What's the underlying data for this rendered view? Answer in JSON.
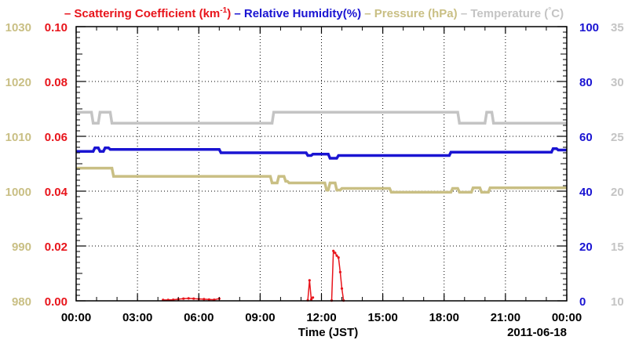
{
  "chart_data": {
    "type": "line",
    "legend": {
      "placement": "top",
      "items": [
        {
          "name": "Scattering Coefficient (km",
          "sup": "-1",
          "suffix": ")",
          "color": "#e8141b"
        },
        {
          "name": "Relative Humidity(%)",
          "color": "#1a14d2"
        },
        {
          "name": "Pressure (hPa)",
          "color": "#c9bf84"
        },
        {
          "name": "Temperature (",
          "degree": "°",
          "suffix": "C)",
          "color": "#c4c4c4"
        }
      ]
    },
    "xlabel": "Time (JST)",
    "date_label": "2011-06-18",
    "x_range": [
      "00:00",
      "24:00"
    ],
    "x_ticks": [
      "00:00",
      "03:00",
      "06:00",
      "09:00",
      "12:00",
      "15:00",
      "18:00",
      "21:00",
      "00:00"
    ],
    "grid": true,
    "axes": {
      "pressure": {
        "ticks": [
          "980",
          "990",
          "1000",
          "1010",
          "1020",
          "1030"
        ],
        "range": [
          980,
          1030
        ],
        "color": "#c9bf84"
      },
      "scattering": {
        "ticks": [
          "0.00",
          "0.02",
          "0.04",
          "0.06",
          "0.08",
          "0.10"
        ],
        "range": [
          0,
          0.1
        ],
        "color": "#e8141b"
      },
      "humidity": {
        "ticks": [
          "0",
          "20",
          "40",
          "60",
          "80",
          "100"
        ],
        "range": [
          0,
          100
        ],
        "color": "#1a14d2"
      },
      "temperature": {
        "ticks": [
          "10",
          "15",
          "20",
          "25",
          "30",
          "35"
        ],
        "range": [
          10,
          35
        ],
        "color": "#c4c4c4"
      }
    },
    "series": [
      {
        "name": "Temperature",
        "axis": "temperature",
        "color": "#c4c4c4",
        "x": [
          "00:00",
          "00:45",
          "00:50",
          "01:05",
          "01:10",
          "01:40",
          "01:45",
          "09:35",
          "09:40",
          "18:40",
          "18:45",
          "20:00",
          "20:05",
          "20:20",
          "20:25",
          "24:00"
        ],
        "y": [
          27.2,
          27.2,
          26.2,
          26.2,
          27.2,
          27.2,
          26.2,
          26.2,
          27.2,
          27.2,
          26.2,
          26.2,
          27.2,
          27.2,
          26.2,
          26.2
        ]
      },
      {
        "name": "Relative Humidity",
        "axis": "humidity",
        "color": "#1a14d2",
        "x": [
          "00:00",
          "00:50",
          "00:55",
          "01:05",
          "01:10",
          "01:20",
          "01:25",
          "01:35",
          "01:40",
          "07:00",
          "07:05",
          "11:15",
          "11:20",
          "11:30",
          "11:35",
          "12:20",
          "12:25",
          "12:45",
          "12:50",
          "18:15",
          "18:20",
          "23:15",
          "23:20",
          "23:30",
          "23:35",
          "24:00"
        ],
        "y": [
          54.5,
          54.5,
          55.8,
          55.8,
          54.5,
          54.5,
          55.8,
          55.8,
          55.2,
          55.2,
          54.0,
          54.0,
          53.0,
          53.0,
          53.5,
          53.5,
          52.0,
          52.0,
          53.0,
          53.0,
          54.2,
          54.2,
          55.5,
          55.5,
          55.0,
          55.0
        ]
      },
      {
        "name": "Pressure",
        "axis": "pressure",
        "color": "#c9bf84",
        "x": [
          "00:00",
          "01:45",
          "01:50",
          "09:30",
          "09:35",
          "09:50",
          "09:55",
          "10:10",
          "10:15",
          "10:20",
          "10:25",
          "12:10",
          "12:15",
          "12:20",
          "12:25",
          "12:40",
          "12:45",
          "12:55",
          "13:00",
          "15:20",
          "15:25",
          "18:20",
          "18:25",
          "18:40",
          "18:45",
          "19:20",
          "19:25",
          "19:45",
          "19:50",
          "20:10",
          "20:15",
          "20:20",
          "20:25",
          "24:00"
        ],
        "y": [
          1004.2,
          1004.2,
          1002.7,
          1002.7,
          1001.5,
          1001.5,
          1002.7,
          1002.7,
          1001.8,
          1001.8,
          1001.5,
          1001.5,
          1000.2,
          1000.2,
          1001.5,
          1001.5,
          1000.2,
          1000.2,
          1000.5,
          1000.5,
          999.8,
          999.8,
          1000.5,
          1000.5,
          999.8,
          999.8,
          1000.6,
          1000.6,
          999.8,
          999.8,
          1000.6,
          1000.6,
          1000.6,
          1000.6
        ]
      },
      {
        "name": "Scattering Coefficient",
        "axis": "scattering",
        "color": "#e8141b",
        "x": [
          "04:15",
          "04:30",
          "04:45",
          "05:00",
          "05:15",
          "05:30",
          "05:45",
          "06:00",
          "06:15",
          "06:30",
          "06:45",
          "07:00",
          "11:20",
          "11:25",
          "11:30",
          "11:35",
          "12:30",
          "12:35",
          "12:40",
          "12:45",
          "12:50",
          "12:55",
          "13:00",
          "13:05"
        ],
        "y": [
          0.0003,
          0.0003,
          0.0004,
          0.0006,
          0.0008,
          0.0009,
          0.0008,
          0.0007,
          0.0006,
          0.0005,
          0.0004,
          0.0008,
          0.0002,
          0.0075,
          0.0005,
          0.0012,
          0.0001,
          0.0182,
          0.0175,
          0.0165,
          0.0158,
          0.0105,
          0.0045,
          0.0001
        ]
      }
    ]
  }
}
